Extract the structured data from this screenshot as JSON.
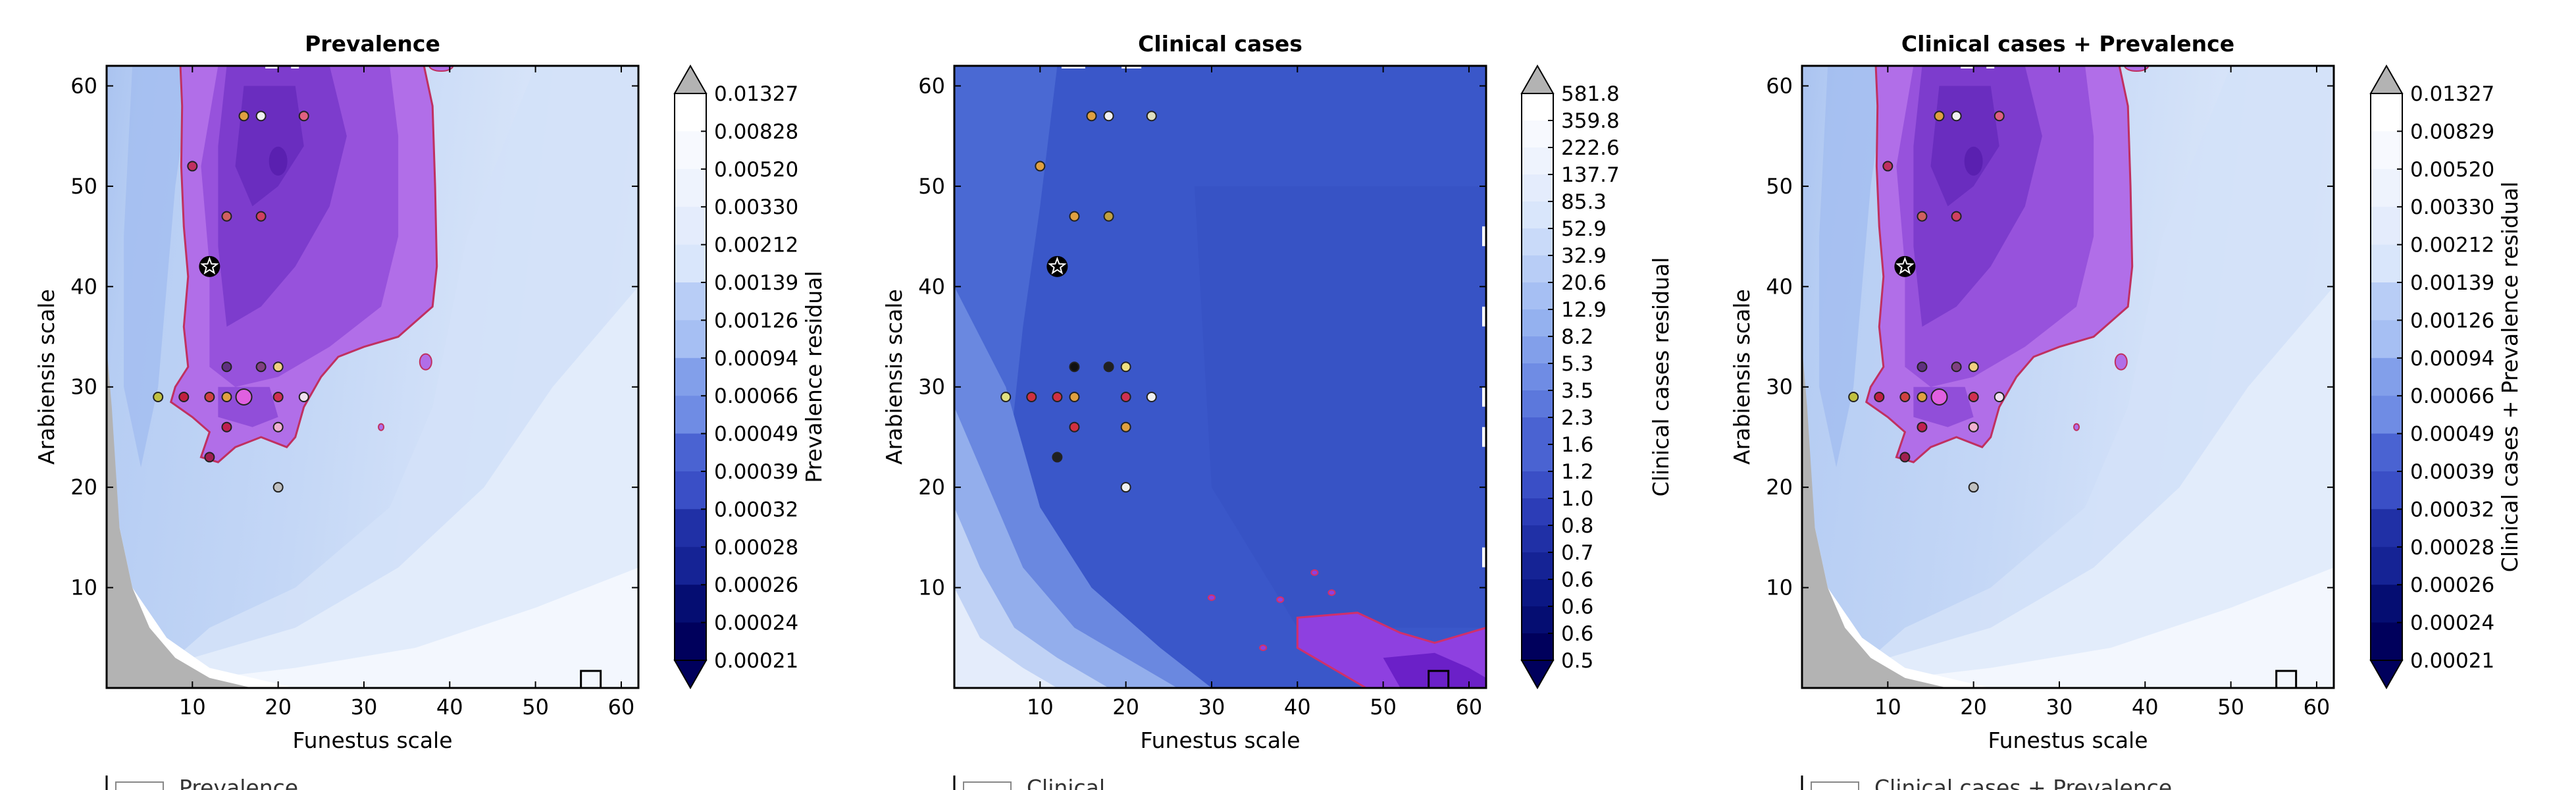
{
  "figure": {
    "legend_fragments": [
      "Prevalence",
      "Clinical",
      "Clinical cases + Prevalence"
    ]
  },
  "chart_data": [
    {
      "type": "contour",
      "title": "Prevalence",
      "xlabel": "Funestus scale",
      "ylabel": "Arabiensis scale",
      "xlim": [
        0,
        62
      ],
      "ylim": [
        0,
        62
      ],
      "xticks": [
        10,
        20,
        30,
        40,
        50,
        60
      ],
      "yticks": [
        10,
        20,
        30,
        40,
        50,
        60
      ],
      "colorbar_label": "Prevalence residual",
      "colorbar_ticks": [
        "0.01327",
        "0.00828",
        "0.00520",
        "0.00330",
        "0.00212",
        "0.00139",
        "0.00126",
        "0.00094",
        "0.00066",
        "0.00049",
        "0.00039",
        "0.00032",
        "0.00028",
        "0.00026",
        "0.00024",
        "0.00021"
      ],
      "points": [
        {
          "x": 12,
          "y": 42,
          "kind": "best"
        },
        {
          "x": 16,
          "y": 57,
          "c": "#e0a040"
        },
        {
          "x": 18,
          "y": 57,
          "c": "#f0f0f0"
        },
        {
          "x": 23,
          "y": 57,
          "c": "#e06080"
        },
        {
          "x": 10,
          "y": 52,
          "c": "#c03060"
        },
        {
          "x": 14,
          "y": 47,
          "c": "#d06060"
        },
        {
          "x": 18,
          "y": 47,
          "c": "#d04060"
        },
        {
          "x": 14,
          "y": 32,
          "c": "#603080"
        },
        {
          "x": 18,
          "y": 32,
          "c": "#804080"
        },
        {
          "x": 20,
          "y": 32,
          "c": "#f0d080"
        },
        {
          "x": 6,
          "y": 29,
          "c": "#c0c040"
        },
        {
          "x": 9,
          "y": 29,
          "c": "#c02040"
        },
        {
          "x": 12,
          "y": 29,
          "c": "#d04040"
        },
        {
          "x": 14,
          "y": 29,
          "c": "#e0a040"
        },
        {
          "x": 16,
          "y": 29,
          "c": "#e060e0",
          "big": true
        },
        {
          "x": 20,
          "y": 29,
          "c": "#d03050"
        },
        {
          "x": 23,
          "y": 29,
          "c": "#f0e0f0"
        },
        {
          "x": 14,
          "y": 26,
          "c": "#c02050"
        },
        {
          "x": 20,
          "y": 26,
          "c": "#f0b0d0"
        },
        {
          "x": 12,
          "y": 23,
          "c": "#a02050"
        },
        {
          "x": 20,
          "y": 20,
          "c": "#c0c0c0"
        }
      ]
    },
    {
      "type": "contour",
      "title": "Clinical cases",
      "xlabel": "Funestus scale",
      "ylabel": "Arabiensis scale",
      "xlim": [
        0,
        62
      ],
      "ylim": [
        0,
        62
      ],
      "xticks": [
        10,
        20,
        30,
        40,
        50,
        60
      ],
      "yticks": [
        10,
        20,
        30,
        40,
        50,
        60
      ],
      "colorbar_label": "Clinical cases residual",
      "colorbar_ticks": [
        "581.8",
        "359.8",
        "222.6",
        "137.7",
        "85.3",
        "52.9",
        "32.9",
        "20.6",
        "12.9",
        "8.2",
        "5.3",
        "3.5",
        "2.3",
        "1.6",
        "1.2",
        "1.0",
        "0.8",
        "0.7",
        "0.6",
        "0.6",
        "0.6",
        "0.5"
      ],
      "points": [
        {
          "x": 12,
          "y": 42,
          "kind": "best"
        },
        {
          "x": 16,
          "y": 57,
          "c": "#e0a040"
        },
        {
          "x": 18,
          "y": 57,
          "c": "#f0f0f0"
        },
        {
          "x": 23,
          "y": 57,
          "c": "#e0e0c0"
        },
        {
          "x": 10,
          "y": 52,
          "c": "#e0a040"
        },
        {
          "x": 14,
          "y": 47,
          "c": "#e0a040"
        },
        {
          "x": 18,
          "y": 47,
          "c": "#c0a040"
        },
        {
          "x": 14,
          "y": 32,
          "c": "#101010"
        },
        {
          "x": 18,
          "y": 32,
          "c": "#202020"
        },
        {
          "x": 20,
          "y": 32,
          "c": "#f0e080"
        },
        {
          "x": 6,
          "y": 29,
          "c": "#e0e080"
        },
        {
          "x": 9,
          "y": 29,
          "c": "#d03040"
        },
        {
          "x": 12,
          "y": 29,
          "c": "#d03040"
        },
        {
          "x": 14,
          "y": 29,
          "c": "#e0a040"
        },
        {
          "x": 20,
          "y": 29,
          "c": "#d03050"
        },
        {
          "x": 23,
          "y": 29,
          "c": "#f0f0f0"
        },
        {
          "x": 14,
          "y": 26,
          "c": "#d03040"
        },
        {
          "x": 20,
          "y": 26,
          "c": "#e0a040"
        },
        {
          "x": 12,
          "y": 23,
          "c": "#202020"
        },
        {
          "x": 20,
          "y": 20,
          "c": "#f0f0f0"
        }
      ]
    },
    {
      "type": "contour",
      "title": "Clinical cases + Prevalence",
      "xlabel": "Funestus scale",
      "ylabel": "Arabiensis scale",
      "xlim": [
        0,
        62
      ],
      "ylim": [
        0,
        62
      ],
      "xticks": [
        10,
        20,
        30,
        40,
        50,
        60
      ],
      "yticks": [
        10,
        20,
        30,
        40,
        50,
        60
      ],
      "colorbar_label": "Clinical cases + Prevalence residual",
      "colorbar_ticks": [
        "0.01327",
        "0.00829",
        "0.00520",
        "0.00330",
        "0.00212",
        "0.00139",
        "0.00126",
        "0.00094",
        "0.00066",
        "0.00049",
        "0.00039",
        "0.00032",
        "0.00028",
        "0.00026",
        "0.00024",
        "0.00021"
      ],
      "points": [
        {
          "x": 12,
          "y": 42,
          "kind": "best"
        },
        {
          "x": 16,
          "y": 57,
          "c": "#e0a040"
        },
        {
          "x": 18,
          "y": 57,
          "c": "#f0f0f0"
        },
        {
          "x": 23,
          "y": 57,
          "c": "#e06080"
        },
        {
          "x": 10,
          "y": 52,
          "c": "#c03060"
        },
        {
          "x": 14,
          "y": 47,
          "c": "#d06060"
        },
        {
          "x": 18,
          "y": 47,
          "c": "#d04060"
        },
        {
          "x": 14,
          "y": 32,
          "c": "#603080"
        },
        {
          "x": 18,
          "y": 32,
          "c": "#804080"
        },
        {
          "x": 20,
          "y": 32,
          "c": "#f0d080"
        },
        {
          "x": 6,
          "y": 29,
          "c": "#c0c040"
        },
        {
          "x": 9,
          "y": 29,
          "c": "#c02040"
        },
        {
          "x": 12,
          "y": 29,
          "c": "#d04040"
        },
        {
          "x": 14,
          "y": 29,
          "c": "#e0a040"
        },
        {
          "x": 16,
          "y": 29,
          "c": "#e060e0",
          "big": true
        },
        {
          "x": 20,
          "y": 29,
          "c": "#d03050"
        },
        {
          "x": 23,
          "y": 29,
          "c": "#f0e0f0"
        },
        {
          "x": 14,
          "y": 26,
          "c": "#c02050"
        },
        {
          "x": 20,
          "y": 26,
          "c": "#f0b0d0"
        },
        {
          "x": 12,
          "y": 23,
          "c": "#a02050"
        },
        {
          "x": 20,
          "y": 20,
          "c": "#c0c0c0"
        }
      ]
    }
  ]
}
